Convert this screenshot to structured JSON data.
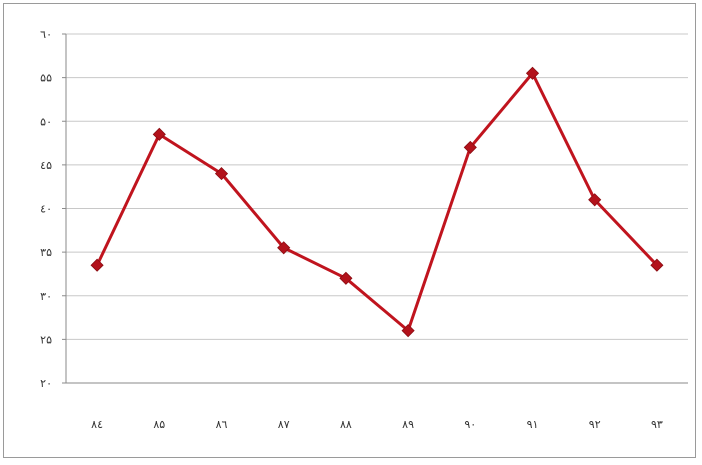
{
  "chart_data": {
    "type": "line",
    "title": "",
    "xlabel": "",
    "ylabel": "",
    "categories": [
      "۸٤",
      "۸۵",
      "۸٦",
      "۸۷",
      "۸۸",
      "۸۹",
      "۹۰",
      "۹۱",
      "۹۲",
      "۹۳"
    ],
    "y_ticks": [
      "۲۰",
      "۲۵",
      "۳۰",
      "۳۵",
      "٤۰",
      "٤۵",
      "۵۰",
      "۵۵",
      "٦۰"
    ],
    "ylim": [
      20,
      60
    ],
    "grid": true,
    "legend": "none",
    "series": [
      {
        "values": [
          33.5,
          48.5,
          44,
          35.5,
          32,
          26,
          47,
          55.5,
          41,
          33.5
        ]
      }
    ],
    "colors": {
      "line": "#c0141e",
      "marker": "#b3121b",
      "grid": "#c8c8c8"
    }
  }
}
